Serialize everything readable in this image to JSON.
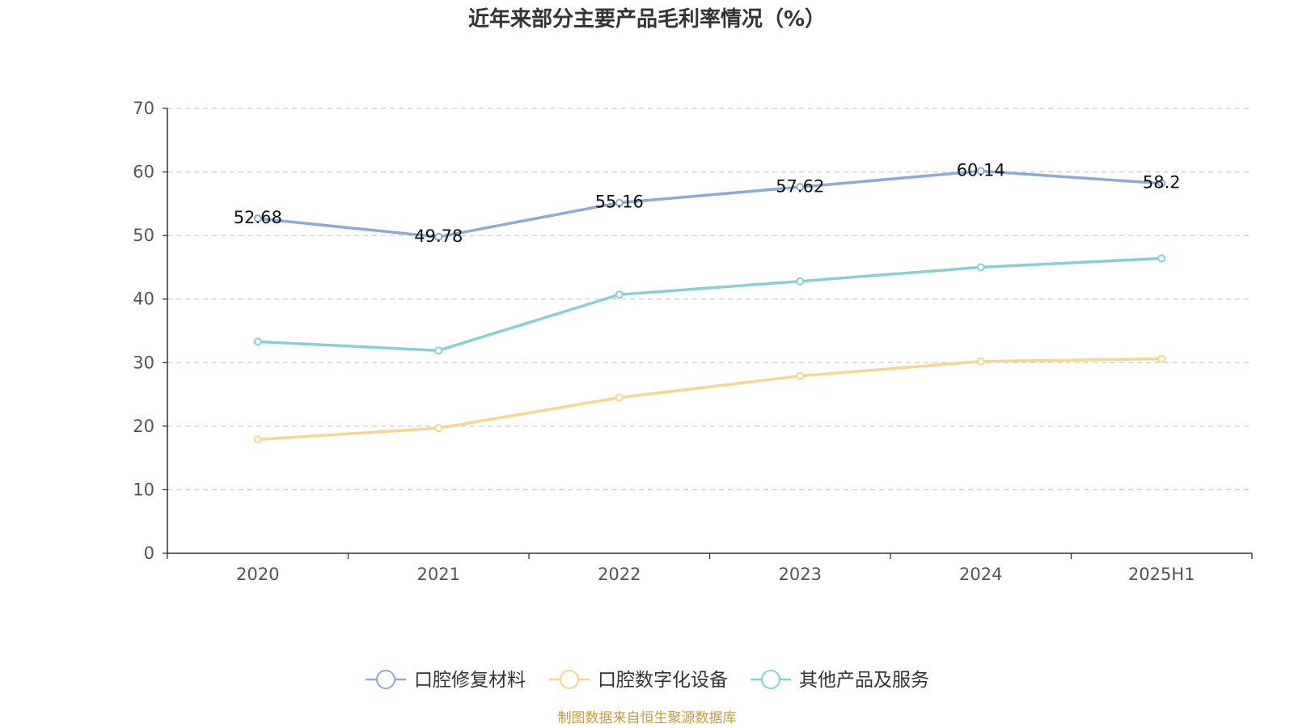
{
  "chart_data": {
    "type": "line",
    "title": "近年来部分主要产品毛利率情况（%）",
    "categories": [
      "2020",
      "2021",
      "2022",
      "2023",
      "2024",
      "2025H1"
    ],
    "ylim": [
      0,
      70
    ],
    "yticks": [
      0,
      10,
      20,
      30,
      40,
      50,
      60,
      70
    ],
    "grid": true,
    "legend_position": "bottom",
    "series": [
      {
        "name": "口腔修复材料",
        "color": "#8eaad8",
        "values": [
          52.68,
          49.78,
          55.16,
          57.62,
          60.14,
          58.2
        ],
        "labels": [
          "52.68",
          "49.78",
          "55.16",
          "57.62",
          "60.14",
          "58.2"
        ]
      },
      {
        "name": "口腔数字化设备",
        "color": "#f9d68f",
        "values": [
          17.9,
          19.7,
          24.5,
          27.9,
          30.2,
          30.6
        ],
        "labels": []
      },
      {
        "name": "其他产品及服务",
        "color": "#86d2d2",
        "values": [
          33.3,
          31.9,
          40.7,
          42.8,
          45.0,
          46.4
        ],
        "labels": []
      }
    ]
  },
  "source": "制图数据来自恒生聚源数据库"
}
